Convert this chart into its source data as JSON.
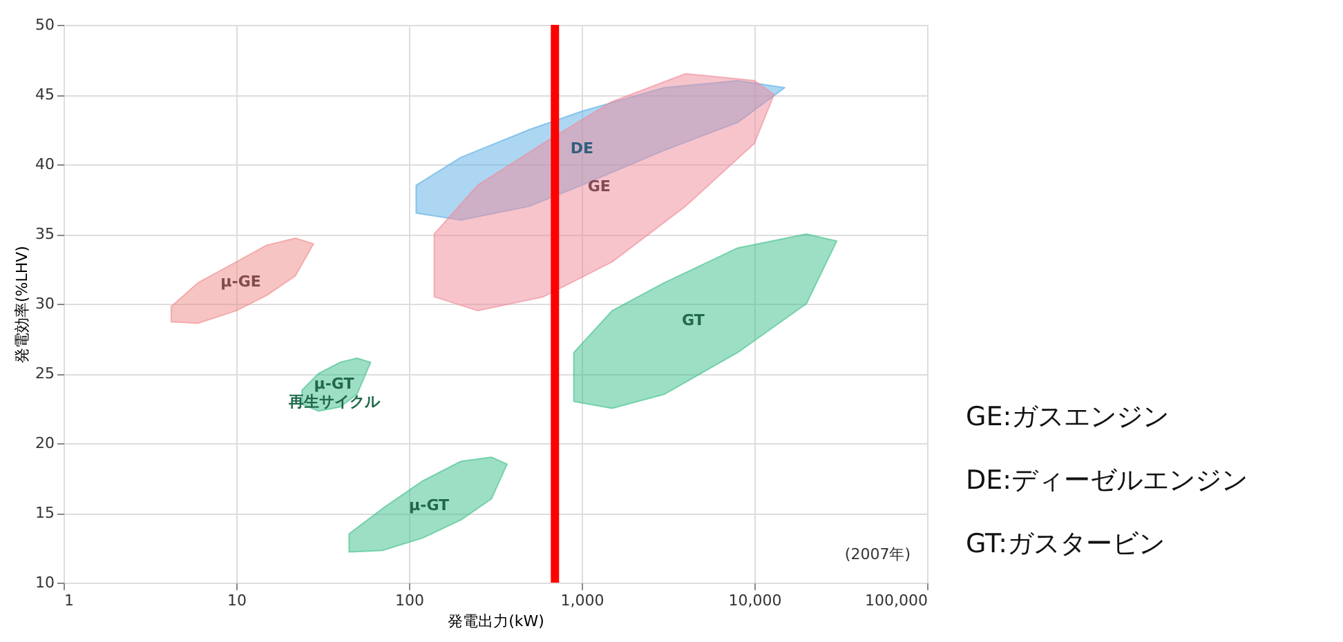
{
  "chart_data": {
    "type": "area",
    "xlabel": "発電出力(kW)",
    "ylabel": "発電効率(%LHV)",
    "log": "x",
    "grid": true,
    "legend": false,
    "xlim": [
      1,
      100000
    ],
    "xticks": [
      1,
      10,
      100,
      {
        "value": 1000,
        "label": "1,000"
      },
      {
        "value": 10000,
        "label": "10,000"
      },
      {
        "value": 100000,
        "label": "100,000"
      }
    ],
    "ylim": [
      10,
      50
    ],
    "yticks": [
      10,
      15,
      20,
      25,
      30,
      35,
      40,
      45,
      50
    ],
    "series": [
      {
        "name": "μ-GE",
        "color": "#f08a8a",
        "x": [
          4.2,
          6,
          10,
          15,
          22,
          28,
          22,
          15,
          10,
          6,
          4.2
        ],
        "values": [
          29.8,
          31.5,
          33,
          34.2,
          34.7,
          34.3,
          32,
          30.6,
          29.5,
          28.6,
          28.7
        ]
      },
      {
        "name": "μ-GT 再生サイクル",
        "color": "#3cbf8a",
        "x": [
          24,
          30,
          40,
          50,
          60,
          50,
          40,
          30,
          24
        ],
        "values": [
          23.8,
          25,
          25.8,
          26.1,
          25.8,
          23.5,
          22.6,
          22.3,
          22.8
        ]
      },
      {
        "name": "μ-GT",
        "color": "#3cbf8a",
        "x": [
          45,
          70,
          120,
          200,
          300,
          370,
          300,
          200,
          120,
          70,
          45
        ],
        "values": [
          13.5,
          15.3,
          17.3,
          18.7,
          19,
          18.5,
          16,
          14.5,
          13.2,
          12.3,
          12.2
        ]
      },
      {
        "name": "DE",
        "color": "#5aaee6",
        "x": [
          110,
          200,
          500,
          1000,
          3000,
          8000,
          15000,
          8000,
          3000,
          1000,
          500,
          200,
          110
        ],
        "values": [
          38.5,
          40.5,
          42.5,
          43.8,
          45.5,
          46,
          45.5,
          43,
          41,
          38.5,
          37,
          36,
          36.5
        ]
      },
      {
        "name": "GE",
        "color": "#f08a9a",
        "x": [
          140,
          250,
          600,
          1500,
          4000,
          10000,
          13000,
          10000,
          4000,
          1500,
          600,
          250,
          140
        ],
        "values": [
          35,
          38.5,
          41.5,
          44.5,
          46.5,
          46,
          45,
          41.5,
          37,
          33,
          30.5,
          29.5,
          30.5
        ]
      },
      {
        "name": "GT",
        "color": "#3cbf8a",
        "x": [
          900,
          1500,
          3000,
          8000,
          20000,
          30000,
          20000,
          8000,
          3000,
          1500,
          900
        ],
        "values": [
          26.5,
          29.5,
          31.5,
          34,
          35,
          34.5,
          30,
          26.5,
          23.5,
          22.5,
          23
        ]
      }
    ],
    "ref_lines": [
      {
        "axis": "x",
        "value": 700,
        "color": "#ff0000"
      }
    ],
    "annotations": [
      "(2007年)",
      "GE:ガスエンジン",
      "DE:ディーゼルエンジン",
      "GT:ガスタービン"
    ]
  }
}
